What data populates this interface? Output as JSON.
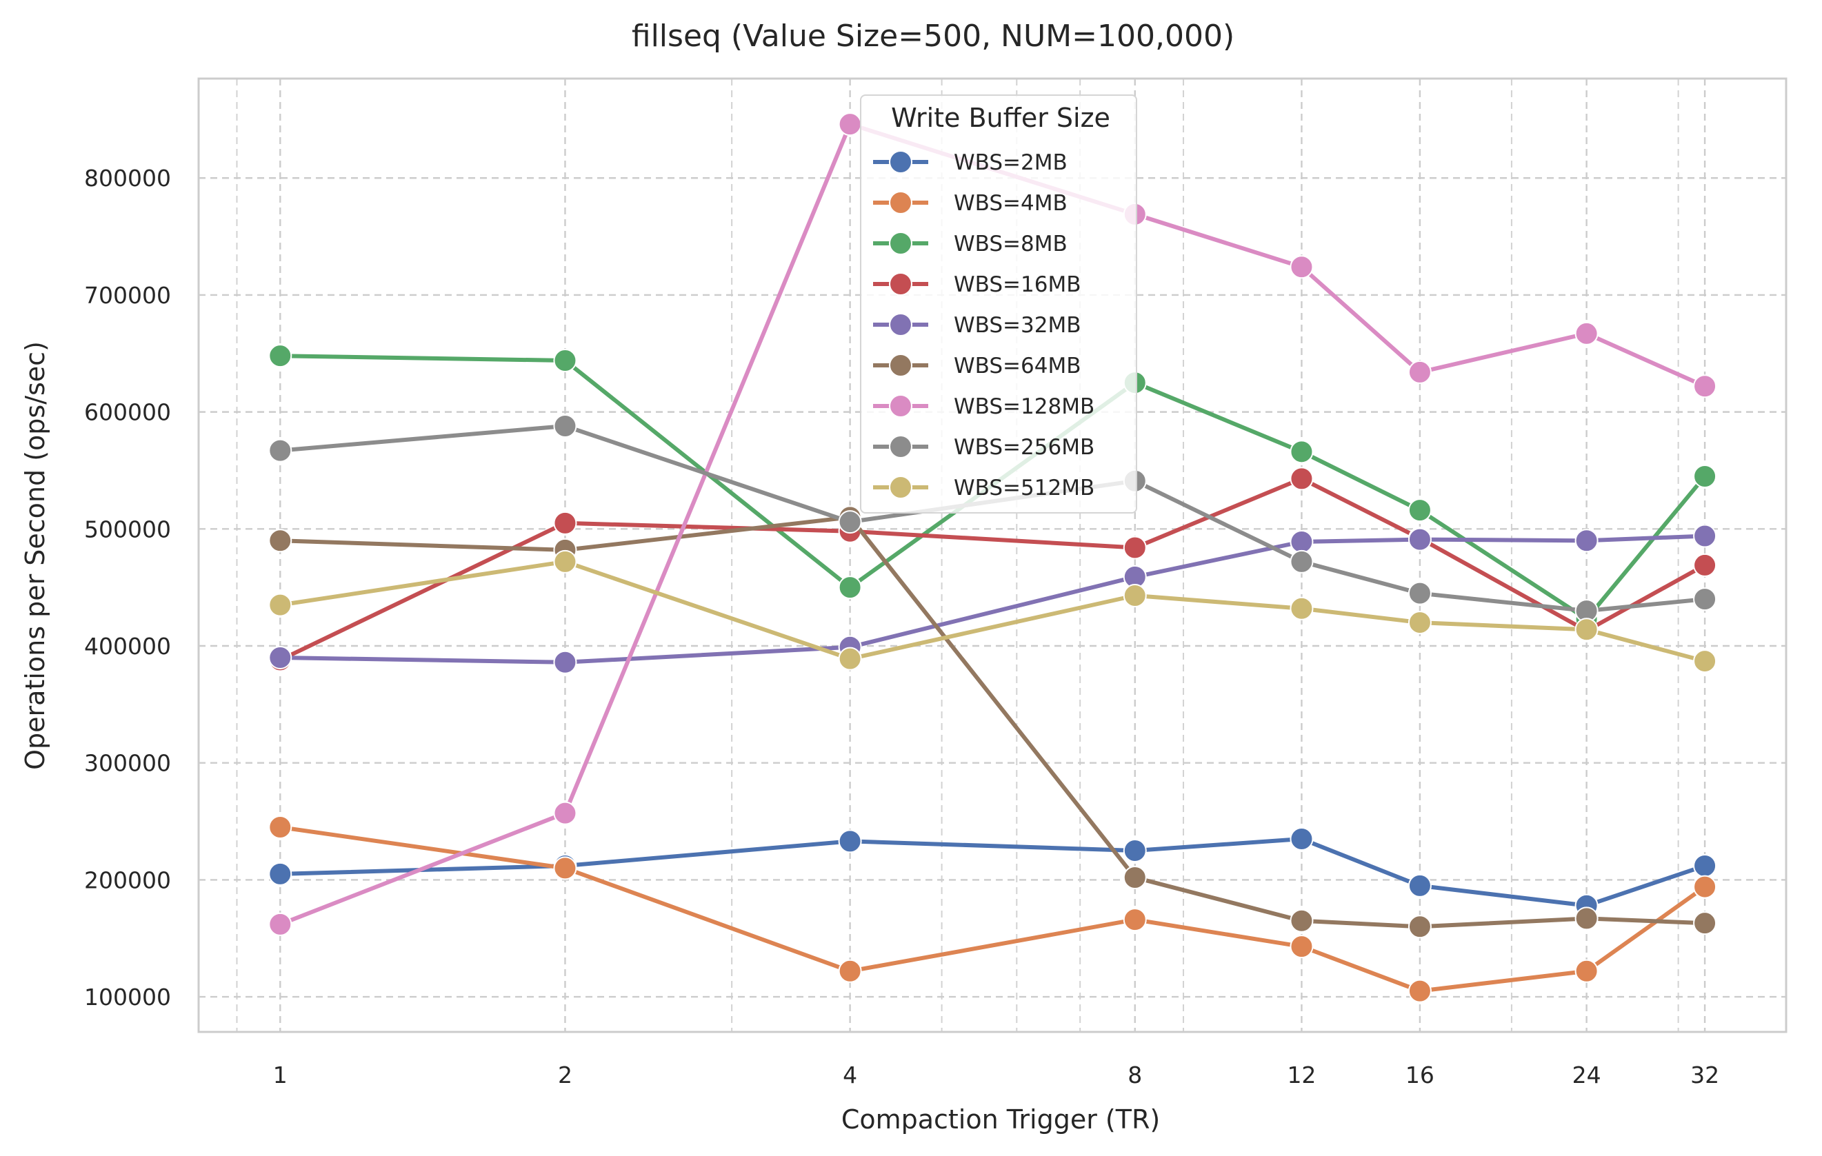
{
  "chart_data": {
    "type": "line",
    "title": "fillseq (Value Size=500, NUM=100,000)",
    "xlabel": "Compaction Trigger (TR)",
    "ylabel": "Operations per Second (ops/sec)",
    "x_scale": "log2",
    "x": [
      1,
      2,
      4,
      8,
      12,
      16,
      24,
      32
    ],
    "x_tick_labels": [
      "1",
      "2",
      "4",
      "8",
      "12",
      "16",
      "24",
      "32"
    ],
    "xlim": [
      0.82,
      39
    ],
    "ylim": [
      70000,
      885000
    ],
    "y_ticks": [
      100000,
      200000,
      300000,
      400000,
      500000,
      600000,
      700000,
      800000
    ],
    "y_tick_labels": [
      "100000",
      "200000",
      "300000",
      "400000",
      "500000",
      "600000",
      "700000",
      "800000"
    ],
    "x_minor_ticks": [
      0.9,
      3,
      5,
      6,
      7,
      9,
      20,
      30
    ],
    "grid": true,
    "legend": {
      "title": "Write Buffer Size",
      "placement": "upper-center"
    },
    "series": [
      {
        "name": "WBS=2MB",
        "color": "#4c72b0",
        "values": [
          205000,
          212000,
          233000,
          225000,
          235000,
          195000,
          178000,
          212000
        ]
      },
      {
        "name": "WBS=4MB",
        "color": "#dd8452",
        "values": [
          245000,
          210000,
          122000,
          166000,
          143000,
          105000,
          122000,
          194000
        ]
      },
      {
        "name": "WBS=8MB",
        "color": "#55a868",
        "values": [
          648000,
          644000,
          450000,
          625000,
          566000,
          516000,
          423000,
          545000
        ]
      },
      {
        "name": "WBS=16MB",
        "color": "#c44e52",
        "values": [
          388000,
          505000,
          498000,
          484000,
          543000,
          492000,
          413000,
          469000
        ]
      },
      {
        "name": "WBS=32MB",
        "color": "#8172b3",
        "values": [
          390000,
          386000,
          399000,
          459000,
          489000,
          491000,
          490000,
          494000
        ]
      },
      {
        "name": "WBS=64MB",
        "color": "#937860",
        "values": [
          490000,
          482000,
          510000,
          202000,
          165000,
          160000,
          167000,
          163000
        ]
      },
      {
        "name": "WBS=128MB",
        "color": "#da8bc3",
        "values": [
          162000,
          257000,
          846000,
          769000,
          724000,
          634000,
          667000,
          622000
        ]
      },
      {
        "name": "WBS=256MB",
        "color": "#8c8c8c",
        "values": [
          567000,
          588000,
          506000,
          541000,
          472000,
          445000,
          430000,
          440000
        ]
      },
      {
        "name": "WBS=512MB",
        "color": "#ccb974",
        "values": [
          435000,
          472000,
          389000,
          443000,
          432000,
          420000,
          414000,
          387000
        ]
      }
    ]
  }
}
